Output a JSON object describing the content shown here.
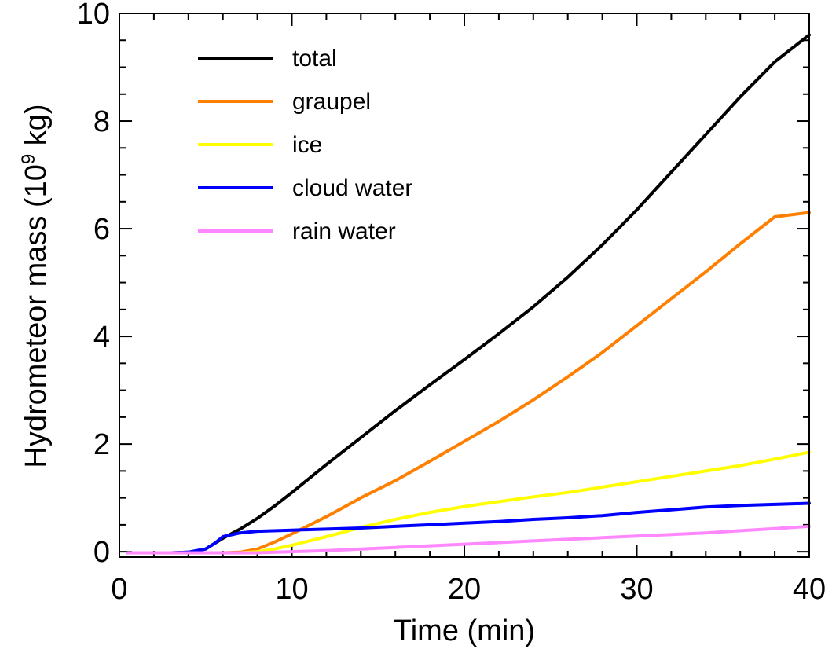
{
  "chart_data": {
    "type": "line",
    "xlabel": "Time (min)",
    "ylabel_prefix": "Hydrometeor mass (10",
    "ylabel_exp": "9",
    "ylabel_suffix": " kg)",
    "xlim": [
      0,
      40
    ],
    "ylim": [
      -0.1,
      10
    ],
    "x_major_ticks": [
      0,
      10,
      20,
      30,
      40
    ],
    "x_minor_step": 2,
    "y_major_ticks": [
      0,
      2,
      4,
      6,
      8,
      10
    ],
    "y_minor_step": 0.5,
    "grid": false,
    "legend_position": "top-left",
    "series": [
      {
        "name": "total",
        "color": "#000000",
        "x": [
          0.5,
          3,
          4,
          5,
          6,
          7,
          8,
          9,
          10,
          12,
          14,
          16,
          18,
          20,
          22,
          24,
          26,
          28,
          30,
          32,
          34,
          36,
          38,
          40
        ],
        "y": [
          -0.02,
          -0.02,
          -0.01,
          0.05,
          0.25,
          0.42,
          0.62,
          0.85,
          1.1,
          1.62,
          2.12,
          2.62,
          3.1,
          3.57,
          4.05,
          4.55,
          5.1,
          5.7,
          6.35,
          7.05,
          7.75,
          8.45,
          9.1,
          9.6
        ]
      },
      {
        "name": "graupel",
        "color": "#ff7f00",
        "x": [
          0.5,
          6,
          7,
          8,
          9,
          10,
          12,
          14,
          16,
          18,
          20,
          22,
          24,
          26,
          28,
          30,
          32,
          34,
          36,
          38,
          40
        ],
        "y": [
          -0.02,
          -0.02,
          -0.01,
          0.05,
          0.18,
          0.33,
          0.65,
          1.0,
          1.32,
          1.68,
          2.05,
          2.42,
          2.82,
          3.25,
          3.7,
          4.2,
          4.7,
          5.2,
          5.72,
          6.22,
          6.3
        ]
      },
      {
        "name": "ice",
        "color": "#ffff00",
        "x": [
          0.5,
          7,
          8,
          9,
          10,
          12,
          14,
          16,
          18,
          20,
          22,
          24,
          26,
          28,
          30,
          32,
          34,
          36,
          38,
          40
        ],
        "y": [
          -0.02,
          -0.02,
          0.0,
          0.05,
          0.12,
          0.28,
          0.45,
          0.6,
          0.73,
          0.84,
          0.93,
          1.02,
          1.1,
          1.2,
          1.3,
          1.4,
          1.5,
          1.6,
          1.72,
          1.85
        ]
      },
      {
        "name": "cloud water",
        "color": "#0000ff",
        "x": [
          0.5,
          3,
          4,
          5,
          5.5,
          6,
          7,
          8,
          10,
          12,
          14,
          16,
          18,
          20,
          22,
          24,
          26,
          28,
          30,
          32,
          34,
          36,
          38,
          40
        ],
        "y": [
          -0.02,
          -0.02,
          -0.01,
          0.05,
          0.15,
          0.28,
          0.35,
          0.38,
          0.4,
          0.42,
          0.44,
          0.47,
          0.5,
          0.53,
          0.56,
          0.6,
          0.63,
          0.67,
          0.73,
          0.78,
          0.83,
          0.86,
          0.88,
          0.9
        ]
      },
      {
        "name": "rain water",
        "color": "#ff88ff",
        "x": [
          0.5,
          8,
          10,
          12,
          14,
          16,
          18,
          20,
          22,
          24,
          26,
          28,
          30,
          32,
          34,
          36,
          38,
          40
        ],
        "y": [
          -0.02,
          -0.02,
          0.0,
          0.02,
          0.05,
          0.08,
          0.11,
          0.14,
          0.17,
          0.2,
          0.23,
          0.26,
          0.29,
          0.32,
          0.35,
          0.39,
          0.43,
          0.47
        ]
      }
    ]
  }
}
